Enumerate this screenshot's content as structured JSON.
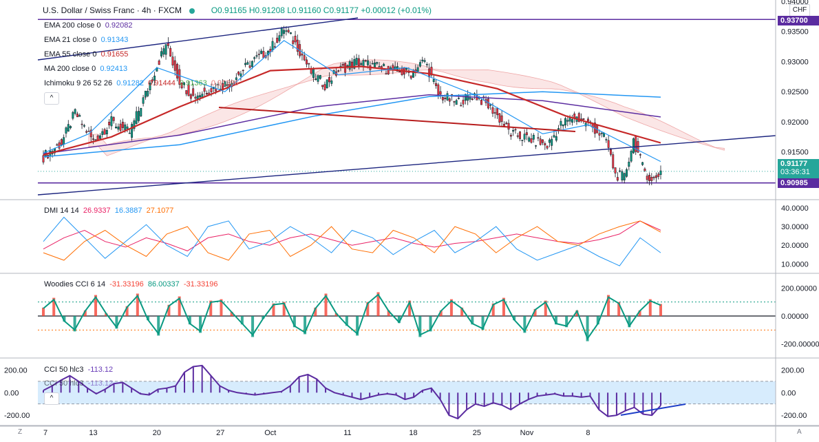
{
  "header": {
    "title": "U.S. Dollar / Swiss Franc · 4h · FXCM",
    "ohlc": [
      "O0.91165",
      "H0.91208",
      "L0.91160",
      "C0.91177",
      "+0.00012 (+0.01%)"
    ]
  },
  "currency": "CHF",
  "price_tags": {
    "upper": "0.93700",
    "last": "0.91177",
    "countdown": "03:36:31",
    "lower": "0.90985"
  },
  "legends": {
    "main": [
      {
        "label": "EMA 200 close 0",
        "value": "0.92082",
        "color": "#5b2ca0"
      },
      {
        "label": "EMA 21 close 0",
        "value": "0.91343",
        "color": "#2196f3"
      },
      {
        "label": "EMA 55 close 0",
        "value": "0.91655",
        "color": "#c62828"
      },
      {
        "label": "MA 200 close 0",
        "value": "0.92413",
        "color": "#2196f3"
      },
      {
        "label": "Ichimoku 9 26 52 26",
        "values": [
          "0.91282",
          "0.91444",
          "0.91363",
          "0.91396"
        ],
        "colors": [
          "#2196f3",
          "#c62828",
          "#4caf50",
          "#e57373"
        ]
      }
    ],
    "dmi": {
      "label": "DMI 14 14",
      "values": [
        "26.9337",
        "16.3887",
        "27.1077"
      ],
      "colors": [
        "#e91e63",
        "#2196f3",
        "#ff6d00"
      ]
    },
    "woodies": {
      "label": "Woodies CCI 6 14",
      "values": [
        "-31.33196",
        "86.00337",
        "-31.33196"
      ],
      "colors": [
        "#f44336",
        "#089981",
        "#f44336"
      ]
    },
    "cci1": {
      "label": "CCI 50 hlc3",
      "value": "-113.12",
      "color": "#673ab7"
    },
    "cci2": {
      "label": "CCI 50 hlc3",
      "value": "-113.12",
      "color": "#673ab7"
    }
  },
  "chart_data": [
    {
      "type": "candlestick",
      "title": "U.S. Dollar / Swiss Franc · 4h · FXCM",
      "y_ticks": [
        "0.94000",
        "0.93500",
        "0.93000",
        "0.92500",
        "0.92000",
        "0.91500",
        "0.91000"
      ],
      "ylim": [
        0.9073,
        0.94
      ],
      "x_ticks": [
        "7",
        "13",
        "20",
        "27",
        "Oct",
        "11",
        "18",
        "25",
        "Nov",
        "8"
      ],
      "horizontal_lines": [
        0.937,
        0.90985
      ],
      "approx_path": [
        [
          0,
          0.9142
        ],
        [
          8,
          0.9165
        ],
        [
          14,
          0.9215
        ],
        [
          22,
          0.9168
        ],
        [
          30,
          0.92
        ],
        [
          38,
          0.9182
        ],
        [
          46,
          0.9255
        ],
        [
          54,
          0.933
        ],
        [
          60,
          0.9268
        ],
        [
          66,
          0.9242
        ],
        [
          74,
          0.9255
        ],
        [
          82,
          0.9265
        ],
        [
          92,
          0.93
        ],
        [
          100,
          0.932
        ],
        [
          106,
          0.9355
        ],
        [
          112,
          0.9325
        ],
        [
          118,
          0.9282
        ],
        [
          124,
          0.9262
        ],
        [
          130,
          0.9285
        ],
        [
          138,
          0.93
        ],
        [
          146,
          0.9292
        ],
        [
          154,
          0.9285
        ],
        [
          162,
          0.928
        ],
        [
          168,
          0.9302
        ],
        [
          174,
          0.9245
        ],
        [
          182,
          0.9232
        ],
        [
          190,
          0.9245
        ],
        [
          198,
          0.922
        ],
        [
          206,
          0.918
        ],
        [
          214,
          0.9172
        ],
        [
          222,
          0.916
        ],
        [
          228,
          0.9195
        ],
        [
          234,
          0.9208
        ],
        [
          240,
          0.9198
        ],
        [
          248,
          0.917
        ],
        [
          252,
          0.9112
        ],
        [
          256,
          0.9108
        ],
        [
          260,
          0.917
        ],
        [
          264,
          0.9125
        ],
        [
          268,
          0.91
        ],
        [
          272,
          0.9118
        ]
      ],
      "ema200": [
        [
          0,
          0.9147
        ],
        [
          60,
          0.9178
        ],
        [
          120,
          0.9225
        ],
        [
          170,
          0.9245
        ],
        [
          220,
          0.9235
        ],
        [
          272,
          0.9208
        ]
      ],
      "ma200": [
        [
          0,
          0.9142
        ],
        [
          60,
          0.9162
        ],
        [
          120,
          0.921
        ],
        [
          170,
          0.9242
        ],
        [
          220,
          0.925
        ],
        [
          272,
          0.9241
        ]
      ],
      "ema55": [
        [
          0,
          0.9145
        ],
        [
          30,
          0.9175
        ],
        [
          60,
          0.9225
        ],
        [
          100,
          0.9285
        ],
        [
          140,
          0.9292
        ],
        [
          170,
          0.928
        ],
        [
          200,
          0.9255
        ],
        [
          230,
          0.921
        ],
        [
          272,
          0.9165
        ]
      ],
      "ema21": [
        [
          0,
          0.9148
        ],
        [
          20,
          0.918
        ],
        [
          50,
          0.929
        ],
        [
          80,
          0.925
        ],
        [
          106,
          0.9335
        ],
        [
          130,
          0.9278
        ],
        [
          160,
          0.929
        ],
        [
          190,
          0.9245
        ],
        [
          220,
          0.918
        ],
        [
          240,
          0.9195
        ],
        [
          272,
          0.9134
        ]
      ]
    },
    {
      "type": "line",
      "title": "DMI 14 14",
      "y_ticks": [
        "40.0000",
        "30.0000",
        "20.0000",
        "10.0000"
      ],
      "ylim": [
        5,
        44
      ],
      "series": [
        {
          "values": [
            18,
            24,
            28,
            22,
            19,
            24,
            21,
            17,
            24,
            26,
            22,
            20,
            24,
            26,
            23,
            20,
            22,
            24,
            21,
            19,
            21,
            22,
            24,
            26,
            24,
            22,
            21,
            23,
            26,
            33,
            28
          ]
        },
        {
          "values": [
            22,
            35,
            24,
            13,
            22,
            31,
            20,
            14,
            30,
            33,
            18,
            22,
            30,
            24,
            16,
            28,
            24,
            15,
            22,
            28,
            16,
            22,
            30,
            18,
            12,
            16,
            20,
            14,
            9,
            24,
            16
          ]
        },
        {
          "values": [
            16,
            12,
            22,
            28,
            20,
            14,
            26,
            30,
            16,
            12,
            26,
            28,
            14,
            20,
            30,
            18,
            16,
            28,
            24,
            16,
            30,
            26,
            16,
            24,
            30,
            22,
            20,
            26,
            30,
            33,
            27
          ]
        }
      ]
    },
    {
      "type": "bar",
      "title": "Woodies CCI 6 14",
      "y_ticks": [
        "200.00000",
        "0.00000",
        "-200.00000"
      ],
      "ylim": [
        -300,
        300
      ],
      "reference_lines": [
        100,
        0,
        -100
      ],
      "values": [
        60,
        130,
        -40,
        -110,
        40,
        150,
        20,
        -90,
        70,
        160,
        -30,
        -140,
        80,
        140,
        -60,
        -120,
        110,
        120,
        30,
        -60,
        -150,
        -20,
        90,
        100,
        -80,
        -130,
        60,
        160,
        20,
        -70,
        -140,
        100,
        170,
        40,
        -50,
        110,
        -150,
        -110,
        40,
        120,
        60,
        -60,
        -100,
        90,
        130,
        -30,
        -120,
        50,
        110,
        -60,
        -80,
        40,
        -180,
        -60,
        150,
        100,
        -80,
        40,
        120,
        86
      ]
    },
    {
      "type": "bar",
      "title": "CCI 50 hlc3",
      "y_ticks": [
        "200.00",
        "0.00",
        "-200.00"
      ],
      "ylim": [
        -290,
        300
      ],
      "band": [
        -100,
        100
      ],
      "values": [
        20,
        60,
        110,
        150,
        100,
        40,
        -10,
        30,
        80,
        90,
        40,
        -10,
        -20,
        30,
        40,
        60,
        180,
        230,
        240,
        150,
        60,
        20,
        0,
        -10,
        -20,
        -10,
        0,
        10,
        60,
        140,
        160,
        120,
        40,
        0,
        -20,
        -40,
        -60,
        -40,
        -20,
        -10,
        -20,
        -60,
        -40,
        20,
        40,
        -60,
        -200,
        -230,
        -150,
        -100,
        -120,
        -90,
        -110,
        -150,
        -100,
        -60,
        -30,
        -20,
        -10,
        -30,
        -30,
        -40,
        -30,
        -150,
        -210,
        -200,
        -160,
        -130,
        -190,
        -200,
        -113
      ]
    }
  ],
  "axis_buttons": {
    "left": "Z",
    "right": "A"
  }
}
